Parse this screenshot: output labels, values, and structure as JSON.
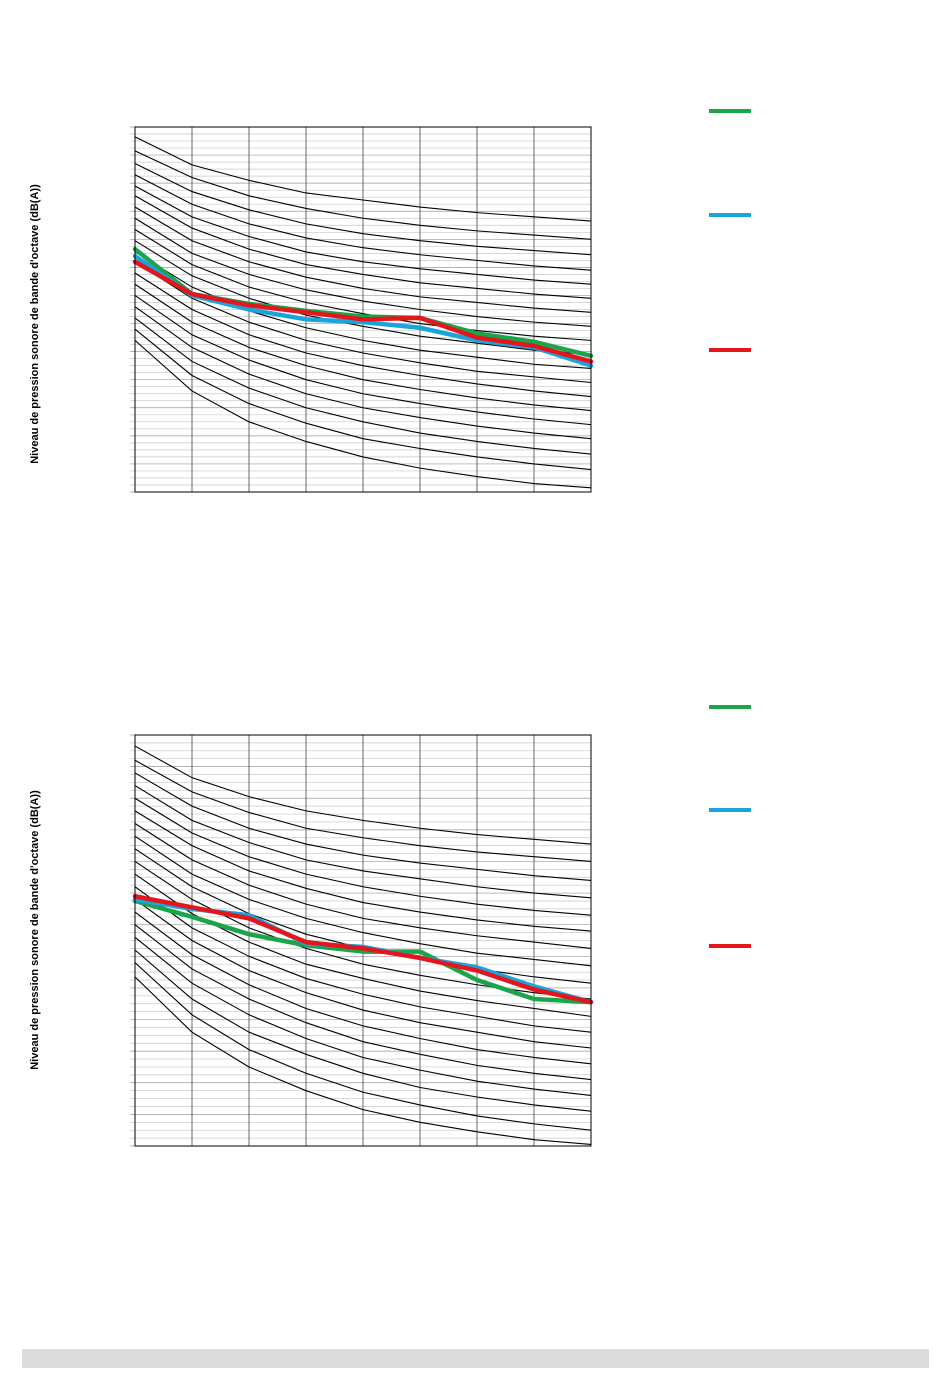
{
  "legend_colors": {
    "green": "#1aa54b",
    "blue": "#1ba3dc",
    "red": "#e3161d"
  },
  "chart_data": [
    {
      "type": "line",
      "ylabel": "Niveau de pression sonore de bande d'octave (dB(A))",
      "grid": true,
      "x_count": 9,
      "ylim": [
        0,
        26
      ],
      "reference_curves": [
        [
          25.3,
          23.3,
          22.2,
          21.3,
          20.8,
          20.3,
          19.9,
          19.6,
          19.3
        ],
        [
          24.3,
          22.4,
          21.1,
          20.2,
          19.5,
          19.0,
          18.6,
          18.3,
          18.0
        ],
        [
          23.4,
          21.4,
          20.1,
          19.1,
          18.4,
          17.9,
          17.5,
          17.2,
          16.9
        ],
        [
          22.6,
          20.5,
          19.1,
          18.1,
          17.4,
          16.9,
          16.5,
          16.1,
          15.8
        ],
        [
          21.8,
          19.6,
          18.2,
          17.1,
          16.4,
          15.9,
          15.5,
          15.1,
          14.8
        ],
        [
          21.1,
          18.8,
          17.3,
          16.2,
          15.5,
          14.9,
          14.5,
          14.1,
          13.8
        ],
        [
          20.3,
          17.9,
          16.4,
          15.3,
          14.5,
          13.9,
          13.5,
          13.1,
          12.8
        ],
        [
          19.5,
          17.0,
          15.5,
          14.4,
          13.6,
          13.0,
          12.5,
          12.1,
          11.8
        ],
        [
          18.7,
          16.2,
          14.6,
          13.5,
          12.7,
          12.0,
          11.5,
          11.1,
          10.8
        ],
        [
          17.9,
          15.4,
          13.8,
          12.6,
          11.8,
          11.1,
          10.6,
          10.1,
          9.8
        ],
        [
          17.1,
          14.6,
          12.9,
          11.7,
          10.8,
          10.1,
          9.6,
          9.1,
          8.8
        ],
        [
          16.4,
          13.8,
          12.1,
          10.8,
          9.9,
          9.2,
          8.6,
          8.2,
          7.8
        ],
        [
          15.6,
          13.0,
          11.2,
          9.9,
          9.0,
          8.3,
          7.7,
          7.2,
          6.8
        ],
        [
          14.8,
          12.1,
          10.3,
          9.0,
          8.0,
          7.3,
          6.7,
          6.2,
          5.8
        ],
        [
          14.0,
          11.2,
          9.4,
          8.0,
          7.0,
          6.3,
          5.7,
          5.2,
          4.8
        ],
        [
          13.2,
          10.3,
          8.4,
          7.0,
          6.0,
          5.3,
          4.7,
          4.2,
          3.8
        ],
        [
          12.4,
          9.3,
          7.4,
          6.0,
          5.0,
          4.2,
          3.6,
          3.1,
          2.7
        ],
        [
          11.6,
          8.3,
          6.3,
          4.9,
          3.8,
          3.1,
          2.5,
          2.0,
          1.6
        ],
        [
          10.8,
          7.2,
          5.0,
          3.6,
          2.5,
          1.7,
          1.1,
          0.6,
          0.3
        ]
      ],
      "series": [
        {
          "color": "#1aa54b",
          "values": [
            17.3,
            14.1,
            13.4,
            12.9,
            12.5,
            12.4,
            11.3,
            10.7,
            9.7
          ]
        },
        {
          "color": "#1ba3dc",
          "values": [
            16.8,
            14.0,
            13.0,
            12.3,
            12.1,
            11.7,
            10.8,
            10.3,
            9.0
          ]
        },
        {
          "color": "#e3161d",
          "values": [
            16.4,
            14.1,
            13.3,
            12.8,
            12.3,
            12.4,
            11.0,
            10.4,
            9.3
          ]
        }
      ]
    },
    {
      "type": "line",
      "ylabel": "Niveau de pression sonore de bande d'octave (dB(A))",
      "grid": true,
      "x_count": 9,
      "ylim": [
        0,
        26
      ],
      "reference_curves": [
        [
          25.3,
          23.3,
          22.1,
          21.2,
          20.6,
          20.1,
          19.7,
          19.4,
          19.1
        ],
        [
          24.4,
          22.4,
          21.1,
          20.1,
          19.5,
          19.0,
          18.6,
          18.3,
          18.0
        ],
        [
          23.6,
          21.5,
          20.1,
          19.1,
          18.4,
          17.9,
          17.5,
          17.1,
          16.8
        ],
        [
          22.8,
          20.6,
          19.2,
          18.1,
          17.4,
          16.9,
          16.4,
          16.0,
          15.7
        ],
        [
          22.0,
          19.8,
          18.3,
          17.2,
          16.4,
          15.8,
          15.3,
          14.9,
          14.6
        ],
        [
          21.2,
          19.0,
          17.4,
          16.3,
          15.4,
          14.8,
          14.3,
          13.9,
          13.6
        ],
        [
          20.4,
          18.1,
          16.5,
          15.3,
          14.4,
          13.8,
          13.3,
          12.9,
          12.5
        ],
        [
          19.6,
          17.2,
          15.6,
          14.4,
          13.5,
          12.8,
          12.2,
          11.8,
          11.4
        ],
        [
          18.8,
          16.4,
          14.7,
          13.4,
          12.5,
          11.8,
          11.2,
          10.7,
          10.3
        ],
        [
          18.0,
          15.6,
          13.8,
          12.5,
          11.5,
          10.8,
          10.2,
          9.7,
          9.3
        ],
        [
          17.2,
          14.7,
          12.9,
          11.5,
          10.6,
          9.8,
          9.2,
          8.7,
          8.2
        ],
        [
          16.4,
          13.8,
          12.0,
          10.6,
          9.6,
          8.8,
          8.2,
          7.6,
          7.2
        ],
        [
          15.6,
          13.0,
          11.1,
          9.7,
          8.6,
          7.8,
          7.2,
          6.6,
          6.2
        ],
        [
          14.8,
          12.1,
          10.2,
          8.7,
          7.6,
          6.8,
          6.1,
          5.6,
          5.2
        ],
        [
          14.0,
          11.2,
          9.3,
          7.8,
          6.6,
          5.8,
          5.1,
          4.6,
          4.2
        ],
        [
          13.2,
          10.3,
          8.3,
          6.8,
          5.6,
          4.8,
          4.1,
          3.6,
          3.2
        ],
        [
          12.4,
          9.3,
          7.2,
          5.8,
          4.6,
          3.7,
          3.1,
          2.6,
          2.2
        ],
        [
          11.6,
          8.3,
          6.1,
          4.6,
          3.4,
          2.6,
          1.9,
          1.4,
          1.0
        ],
        [
          10.7,
          7.2,
          5.0,
          3.5,
          2.3,
          1.5,
          0.9,
          0.4,
          0.1
        ]
      ],
      "series": [
        {
          "color": "#1aa54b",
          "values": [
            15.5,
            14.5,
            13.4,
            12.7,
            12.3,
            12.3,
            10.5,
            9.3,
            9.1
          ]
        },
        {
          "color": "#1ba3dc",
          "values": [
            15.6,
            15.0,
            14.6,
            12.8,
            12.6,
            11.9,
            11.3,
            10.1,
            9.1
          ]
        },
        {
          "color": "#e3161d",
          "values": [
            15.8,
            15.1,
            14.4,
            12.9,
            12.5,
            11.9,
            11.1,
            9.9,
            9.1
          ]
        }
      ]
    }
  ]
}
